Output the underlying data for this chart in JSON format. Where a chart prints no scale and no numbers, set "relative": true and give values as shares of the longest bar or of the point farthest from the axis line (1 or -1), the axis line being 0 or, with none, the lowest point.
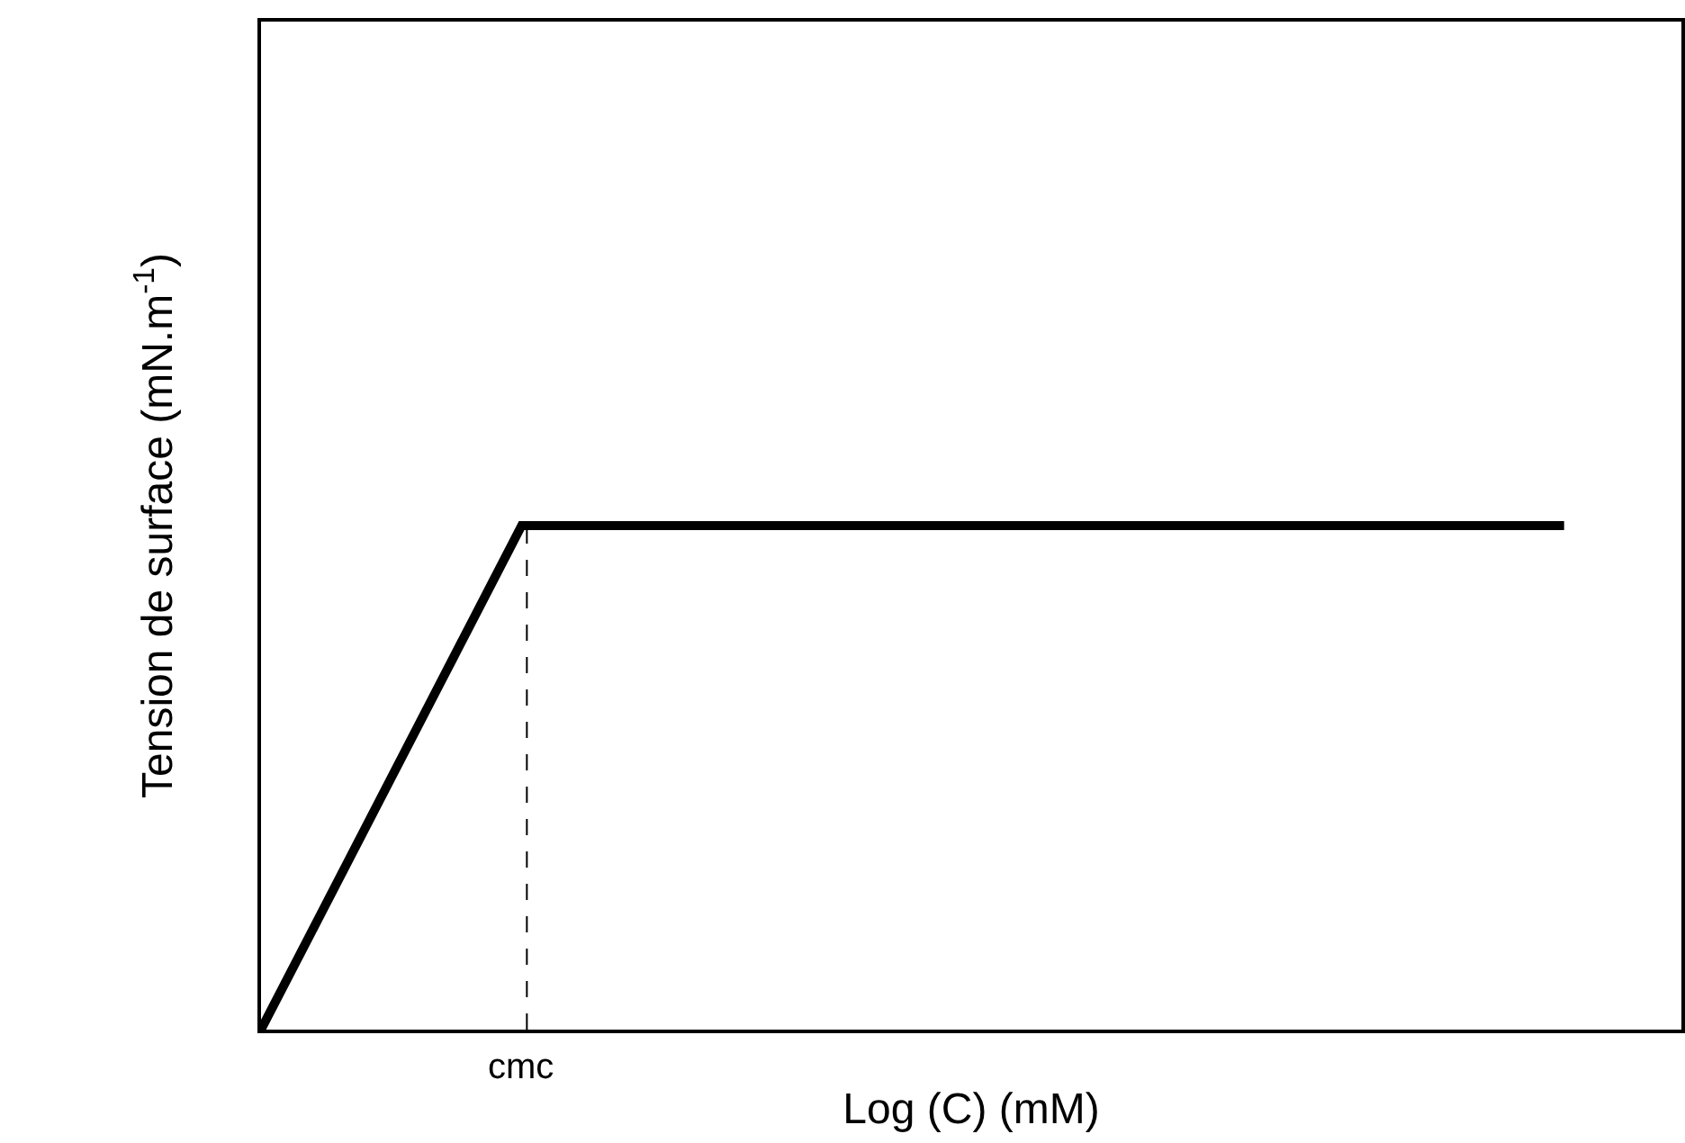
{
  "chart_data": {
    "type": "line",
    "relative": true,
    "xlabel": "Log (C) (mM)",
    "ylabel": "Tension de surface (mN.m$^{-1}$)",
    "categories": [
      null,
      null,
      null,
      null,
      null,
      null
    ],
    "series": [
      {
        "color": "#000000",
        "values": [
          0,
          1,
          1,
          1,
          1,
          1
        ]
      }
    ],
    "annotations": [
      "cmc"
    ],
    "marker": "none",
    "line_style": "solid"
  }
}
